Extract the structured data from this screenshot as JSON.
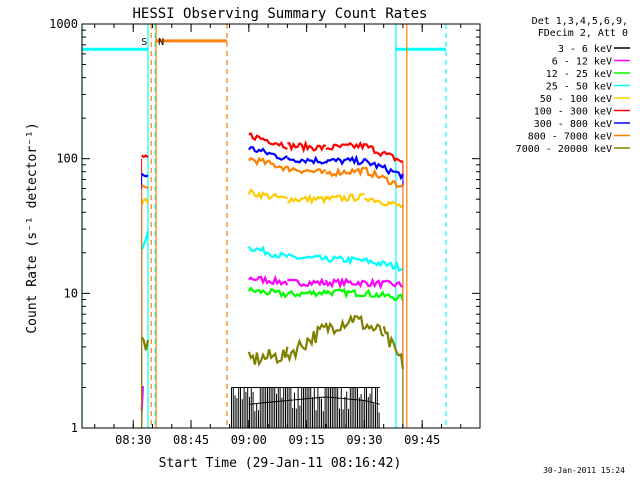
{
  "chart_data": {
    "type": "line",
    "title": "HESSI Observing Summary Count Rates",
    "xlabel": "Start Time (29-Jan-11 08:16:42)",
    "ylabel": "Count Rate (s⁻¹ detector⁻¹)",
    "yscale": "log",
    "ylim": [
      1,
      1000
    ],
    "xlim": [
      "08:16:42",
      "10:00:00"
    ],
    "x_ticks": [
      "08:30",
      "08:45",
      "09:00",
      "09:15",
      "09:30",
      "09:45"
    ],
    "y_ticks": [
      "1",
      "10",
      "100",
      "1000"
    ],
    "grid": false,
    "legend_position": "top-right (outside plot)",
    "legend_header": [
      "Det 1,3,4,5,6,9,",
      "FDecim 2, Att 0"
    ],
    "markers": [
      {
        "label": "S",
        "color": "#ff7f00",
        "time": "08:34:40"
      },
      {
        "label": "N",
        "color": "#00ffff",
        "time": "08:35:40"
      }
    ],
    "bars": [
      {
        "name": "SAA interval",
        "color": "#ff7f00",
        "start": "08:35:40",
        "end": "08:54:20",
        "value": 750
      },
      {
        "name": "night interval",
        "color": "#00ffff",
        "start": "08:16:42",
        "end": "08:33:50",
        "value": 650
      },
      {
        "name": "night interval",
        "color": "#00ffff",
        "start": "09:38:10",
        "end": "09:51:10",
        "value": 650
      }
    ],
    "series": [
      {
        "name": "3 - 6 keV",
        "color": "#000000",
        "x": [
          "08:32:10",
          "08:32:30",
          "09:00:00",
          "09:10:00",
          "09:20:00",
          "09:30:00",
          "09:34:00"
        ],
        "values": [
          1,
          2,
          1.5,
          1.6,
          1.7,
          1.6,
          1.5
        ]
      },
      {
        "name": "6 - 12 keV",
        "color": "#ff00ff",
        "x": [
          "08:32:10",
          "08:32:30",
          "09:00:00",
          "09:10:00",
          "09:20:00",
          "09:30:00",
          "09:40:00"
        ],
        "values": [
          1.3,
          2,
          13,
          12,
          12,
          12,
          11.5
        ]
      },
      {
        "name": "12 - 25 keV",
        "color": "#00ff00",
        "x": [
          "09:00:00",
          "09:10:00",
          "09:20:00",
          "09:30:00",
          "09:40:00"
        ],
        "values": [
          10.5,
          9.8,
          10.2,
          10,
          9.2
        ]
      },
      {
        "name": "25 - 50 keV",
        "color": "#00ffff",
        "x": [
          "08:32:10",
          "08:33:50",
          "09:00:00",
          "09:10:00",
          "09:20:00",
          "09:30:00",
          "09:40:00"
        ],
        "values": [
          20,
          30,
          22,
          18.5,
          18,
          17.5,
          15.5
        ]
      },
      {
        "name": "50 - 100 keV",
        "color": "#ffcc00",
        "x": [
          "08:32:10",
          "08:33:50",
          "09:00:00",
          "09:10:00",
          "09:20:00",
          "09:30:00",
          "09:40:00"
        ],
        "values": [
          48,
          48,
          56,
          50,
          50,
          52,
          44
        ]
      },
      {
        "name": "100 - 300 keV",
        "color": "#ff0000",
        "x": [
          "08:32:10",
          "08:33:50",
          "09:00:00",
          "09:10:00",
          "09:20:00",
          "09:30:00",
          "09:40:00"
        ],
        "values": [
          100,
          100,
          150,
          125,
          120,
          125,
          95
        ]
      },
      {
        "name": "300 - 800 keV",
        "color": "#0000ff",
        "x": [
          "08:32:10",
          "08:33:50",
          "09:00:00",
          "09:10:00",
          "09:20:00",
          "09:30:00",
          "09:40:00"
        ],
        "values": [
          75,
          75,
          120,
          100,
          96,
          96,
          75
        ]
      },
      {
        "name": "800 - 7000 keV",
        "color": "#ff7f00",
        "x": [
          "08:32:10",
          "08:33:50",
          "09:00:00",
          "09:10:00",
          "09:20:00",
          "09:30:00",
          "09:40:00"
        ],
        "values": [
          60,
          60,
          100,
          85,
          78,
          82,
          62
        ]
      },
      {
        "name": "7000 - 20000 keV",
        "color": "#808000",
        "x": [
          "08:32:10",
          "08:33:50",
          "09:00:00",
          "09:10:00",
          "09:20:00",
          "09:27:00",
          "09:35:00",
          "09:40:00"
        ],
        "values": [
          4.5,
          4,
          3.2,
          3.5,
          5.5,
          6.5,
          5,
          3
        ]
      }
    ]
  },
  "footer": {
    "timestamp": "30-Jan-2011 15:24"
  }
}
